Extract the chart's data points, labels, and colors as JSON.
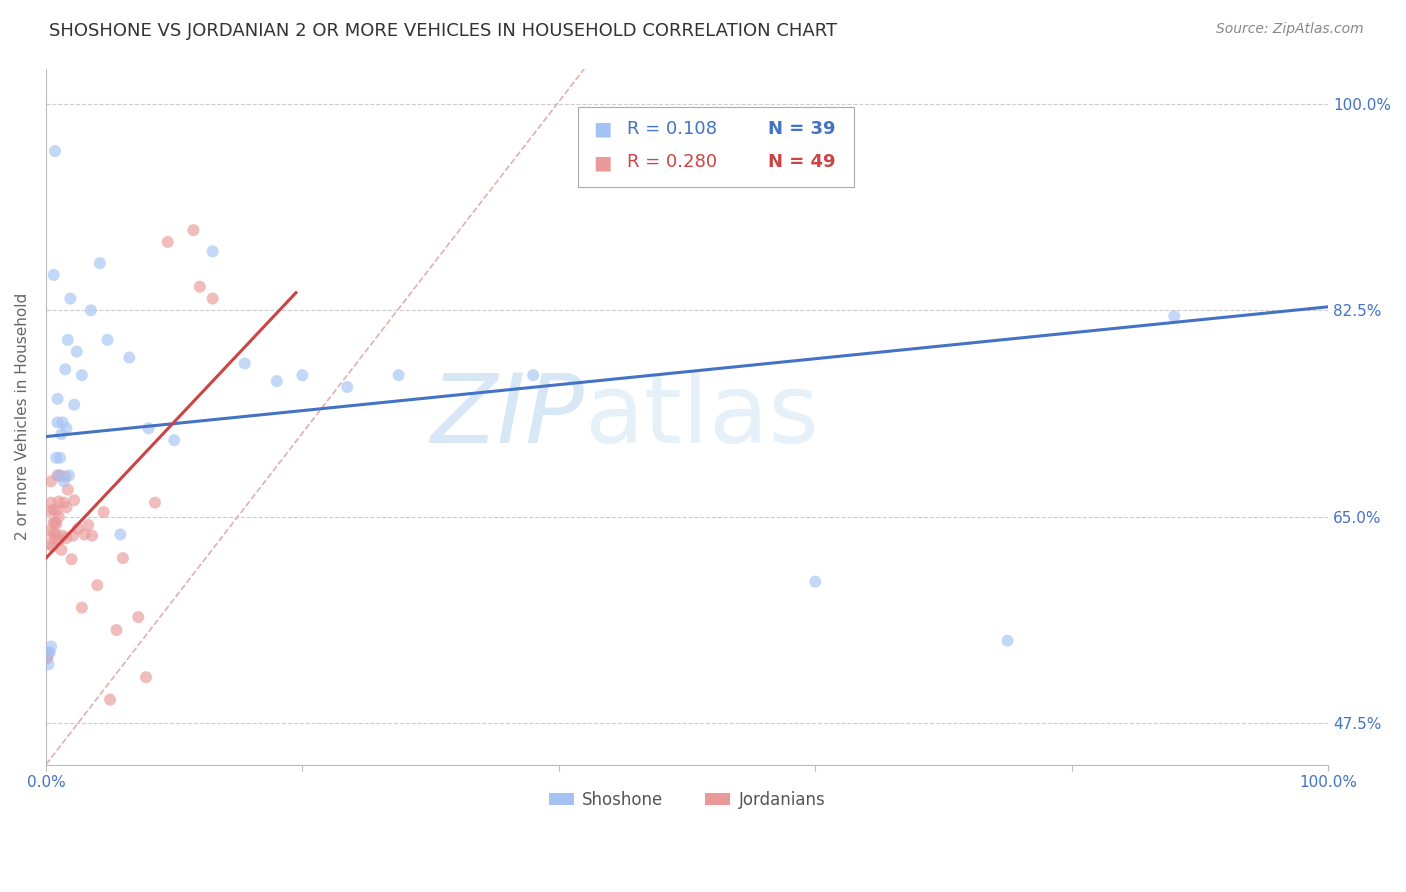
{
  "title": "SHOSHONE VS JORDANIAN 2 OR MORE VEHICLES IN HOUSEHOLD CORRELATION CHART",
  "source": "Source: ZipAtlas.com",
  "ylabel": "2 or more Vehicles in Household",
  "watermark_line1": "ZIP",
  "watermark_line2": "atlas",
  "xlim": [
    0.0,
    1.0
  ],
  "ylim": [
    0.44,
    1.03
  ],
  "ytick_positions": [
    0.475,
    0.65,
    0.825,
    1.0
  ],
  "ytick_labels": [
    "47.5%",
    "65.0%",
    "82.5%",
    "100.0%"
  ],
  "legend_blue_R": "R = 0.108",
  "legend_blue_N": "N = 39",
  "legend_pink_R": "R = 0.280",
  "legend_pink_N": "N = 49",
  "shoshone_color": "#a4c2f4",
  "jordanian_color": "#ea9999",
  "shoshone_line_color": "#4472c4",
  "jordanian_line_color": "#cc4444",
  "diagonal_color": "#e0b0b0",
  "background_color": "#ffffff",
  "grid_color": "#cccccc",
  "shoshone_points_x": [
    0.002,
    0.002,
    0.003,
    0.004,
    0.006,
    0.007,
    0.008,
    0.009,
    0.009,
    0.01,
    0.011,
    0.012,
    0.013,
    0.014,
    0.015,
    0.016,
    0.017,
    0.018,
    0.019,
    0.022,
    0.024,
    0.028,
    0.035,
    0.042,
    0.048,
    0.058,
    0.065,
    0.08,
    0.1,
    0.13,
    0.155,
    0.18,
    0.2,
    0.235,
    0.275,
    0.38,
    0.6,
    0.75,
    0.88
  ],
  "shoshone_points_y": [
    0.525,
    0.535,
    0.535,
    0.54,
    0.855,
    0.96,
    0.7,
    0.73,
    0.75,
    0.685,
    0.7,
    0.72,
    0.73,
    0.68,
    0.775,
    0.725,
    0.8,
    0.685,
    0.835,
    0.745,
    0.79,
    0.77,
    0.825,
    0.865,
    0.8,
    0.635,
    0.785,
    0.725,
    0.715,
    0.875,
    0.78,
    0.765,
    0.77,
    0.76,
    0.77,
    0.77,
    0.595,
    0.545,
    0.82
  ],
  "jordanian_points_x": [
    0.001,
    0.001,
    0.001,
    0.002,
    0.002,
    0.003,
    0.004,
    0.004,
    0.005,
    0.006,
    0.006,
    0.006,
    0.007,
    0.007,
    0.008,
    0.008,
    0.008,
    0.009,
    0.01,
    0.01,
    0.01,
    0.011,
    0.012,
    0.013,
    0.014,
    0.015,
    0.016,
    0.016,
    0.017,
    0.02,
    0.021,
    0.022,
    0.025,
    0.028,
    0.03,
    0.033,
    0.036,
    0.04,
    0.045,
    0.05,
    0.055,
    0.06,
    0.072,
    0.078,
    0.085,
    0.095,
    0.115,
    0.12,
    0.13
  ],
  "jordanian_points_y": [
    0.53,
    0.532,
    0.534,
    0.627,
    0.638,
    0.655,
    0.662,
    0.68,
    0.625,
    0.636,
    0.645,
    0.656,
    0.632,
    0.645,
    0.635,
    0.644,
    0.655,
    0.685,
    0.63,
    0.65,
    0.663,
    0.685,
    0.622,
    0.634,
    0.662,
    0.684,
    0.632,
    0.658,
    0.673,
    0.614,
    0.634,
    0.664,
    0.64,
    0.573,
    0.635,
    0.643,
    0.634,
    0.592,
    0.654,
    0.495,
    0.554,
    0.615,
    0.565,
    0.514,
    0.662,
    0.883,
    0.893,
    0.845,
    0.835
  ],
  "shoshone_line_x0": 0.0,
  "shoshone_line_x1": 1.0,
  "shoshone_line_y0": 0.718,
  "shoshone_line_y1": 0.828,
  "jordanian_line_x0": 0.0,
  "jordanian_line_x1": 0.195,
  "jordanian_line_y0": 0.615,
  "jordanian_line_y1": 0.84,
  "diagonal_line_x0": 0.0,
  "diagonal_line_x1": 0.42,
  "diagonal_line_y0": 0.44,
  "diagonal_line_y1": 1.03,
  "title_fontsize": 13,
  "source_fontsize": 10,
  "legend_fontsize": 13,
  "axis_label_fontsize": 11,
  "tick_fontsize": 11,
  "watermark_fontsize": 70,
  "marker_size": 75,
  "marker_alpha": 0.65
}
